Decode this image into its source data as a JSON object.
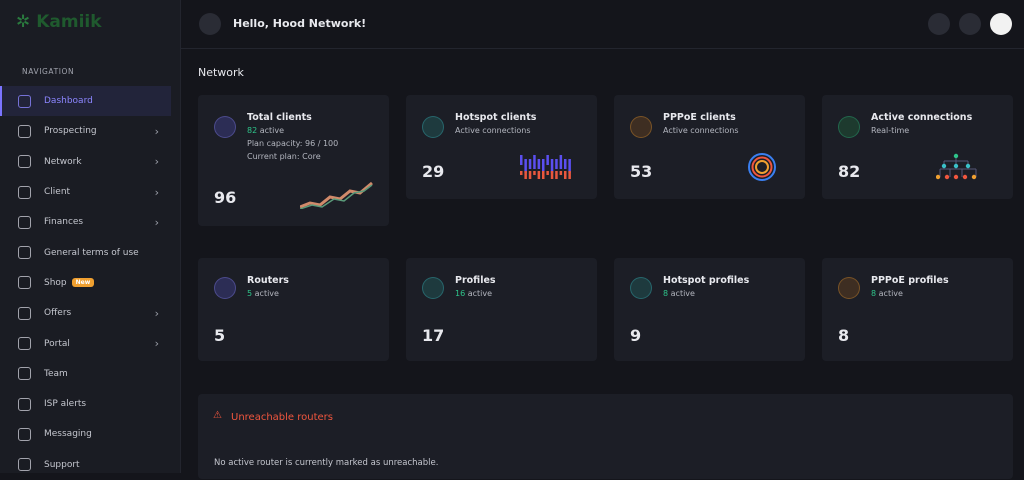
{
  "brand": "Kamiik",
  "sidebar": {
    "section": "NAVIGATION",
    "items": [
      {
        "label": "Dashboard",
        "active": true
      },
      {
        "label": "Prospecting",
        "submenu": true
      },
      {
        "label": "Network",
        "submenu": true
      },
      {
        "label": "Client",
        "submenu": true
      },
      {
        "label": "Finances",
        "submenu": true
      },
      {
        "label": "General terms of use"
      },
      {
        "label": "Shop",
        "badge": "New"
      },
      {
        "label": "Offers",
        "submenu": true
      },
      {
        "label": "Portal",
        "submenu": true
      },
      {
        "label": "Team"
      },
      {
        "label": "ISP alerts"
      },
      {
        "label": "Messaging"
      },
      {
        "label": "Support"
      }
    ]
  },
  "header": {
    "greeting": "Hello, Hood Network!"
  },
  "section_title": "Network",
  "cards": [
    {
      "title": "Total clients",
      "active_count": 82,
      "active_label": "active",
      "lines": [
        "Plan capacity: 96 / 100",
        "Current plan: Core"
      ],
      "value": 96
    },
    {
      "title": "Hotspot clients",
      "subtitle": "Active connections",
      "value": 29
    },
    {
      "title": "PPPoE clients",
      "subtitle": "Active connections",
      "value": 53
    },
    {
      "title": "Active connections",
      "subtitle": "Real-time",
      "value": 82
    },
    {
      "title": "Routers",
      "active_count": 5,
      "active_label": "active",
      "value": 5
    },
    {
      "title": "Profiles",
      "active_count": 16,
      "active_label": "active",
      "value": 17
    },
    {
      "title": "Hotspot profiles",
      "active_count": 8,
      "active_label": "active",
      "value": 9
    },
    {
      "title": "PPPoE profiles",
      "active_count": 8,
      "active_label": "active",
      "value": 8
    }
  ],
  "alert": {
    "title": "Unreachable routers",
    "message": "No active router is currently marked as unreachable."
  }
}
